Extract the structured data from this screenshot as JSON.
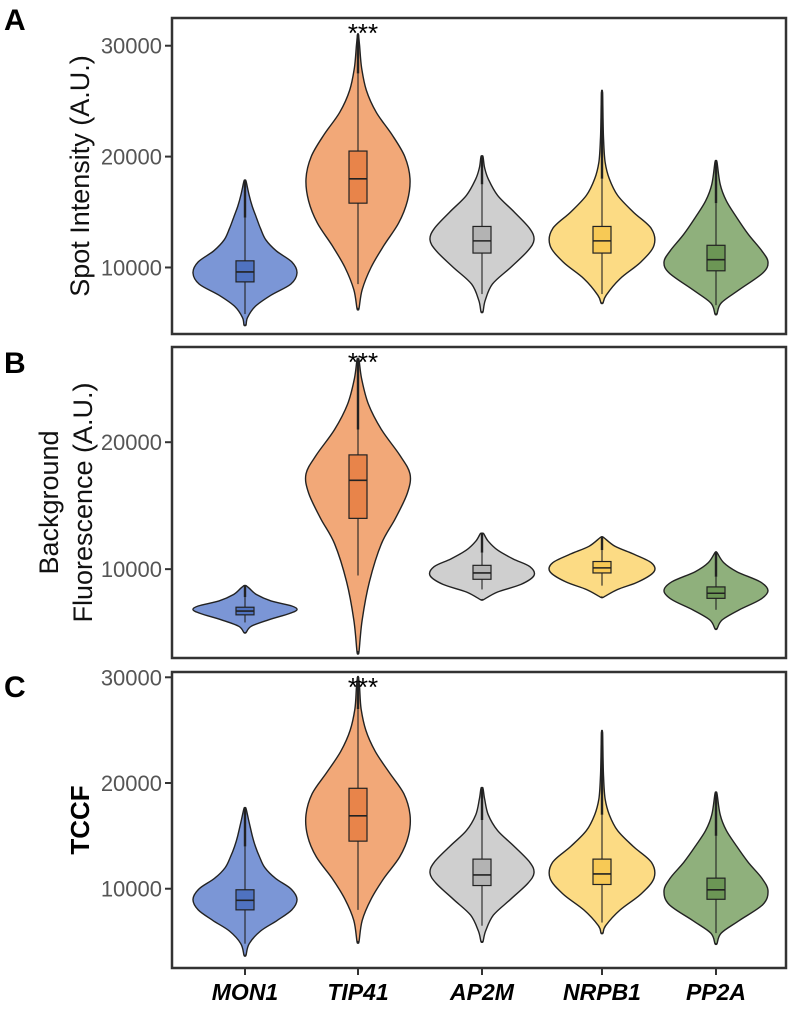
{
  "chart_data": {
    "type": "violin",
    "categories": [
      "MON1",
      "TIP41",
      "AP2M",
      "NRPB1",
      "PP2A"
    ],
    "colors": [
      "#7b96d6",
      "#f2a878",
      "#cfcfcf",
      "#fcdb84",
      "#8fb07c"
    ],
    "box_colors": [
      "#4f72c0",
      "#e8844a",
      "#b3b3b3",
      "#f7c955",
      "#6c9655"
    ],
    "panels": [
      {
        "label": "A",
        "ylabel_lines": [
          "Spot Intensity (A.U.)"
        ],
        "ylabel_bold": false,
        "ylim": [
          4000,
          32500
        ],
        "yticks": [
          10000,
          20000,
          30000
        ],
        "ytick_labels": [
          "10000",
          "20000",
          "30000"
        ],
        "annotation": {
          "category": "TIP41",
          "text": "***"
        },
        "series": [
          {
            "name": "MON1",
            "min": 4800,
            "max": 17800,
            "q1": 8700,
            "median": 9600,
            "q3": 10600,
            "whisker_low": 5800,
            "whisker_high": 14500,
            "density": [
              [
                4800,
                0.02
              ],
              [
                5500,
                0.05
              ],
              [
                6500,
                0.2
              ],
              [
                7500,
                0.5
              ],
              [
                8500,
                0.88
              ],
              [
                9500,
                1.0
              ],
              [
                10500,
                0.9
              ],
              [
                11500,
                0.6
              ],
              [
                12500,
                0.4
              ],
              [
                13500,
                0.3
              ],
              [
                14500,
                0.22
              ],
              [
                15500,
                0.14
              ],
              [
                16500,
                0.08
              ],
              [
                17800,
                0.02
              ]
            ]
          },
          {
            "name": "TIP41",
            "min": 6300,
            "max": 31000,
            "q1": 15800,
            "median": 18000,
            "q3": 20500,
            "whisker_low": 8500,
            "whisker_high": 27500,
            "density": [
              [
                6300,
                0.02
              ],
              [
                8000,
                0.08
              ],
              [
                10000,
                0.25
              ],
              [
                12000,
                0.5
              ],
              [
                14000,
                0.78
              ],
              [
                16000,
                0.95
              ],
              [
                18000,
                1.0
              ],
              [
                20000,
                0.9
              ],
              [
                22000,
                0.65
              ],
              [
                24000,
                0.35
              ],
              [
                26000,
                0.16
              ],
              [
                28000,
                0.07
              ],
              [
                30000,
                0.03
              ],
              [
                31000,
                0.01
              ]
            ]
          },
          {
            "name": "AP2M",
            "min": 6000,
            "max": 20000,
            "q1": 11300,
            "median": 12400,
            "q3": 13700,
            "whisker_low": 7600,
            "whisker_high": 17500,
            "density": [
              [
                6000,
                0.02
              ],
              [
                7000,
                0.06
              ],
              [
                8500,
                0.2
              ],
              [
                10000,
                0.55
              ],
              [
                11500,
                0.88
              ],
              [
                12500,
                1.0
              ],
              [
                13500,
                0.92
              ],
              [
                15000,
                0.62
              ],
              [
                16500,
                0.3
              ],
              [
                18000,
                0.12
              ],
              [
                19000,
                0.05
              ],
              [
                20000,
                0.02
              ]
            ]
          },
          {
            "name": "NRPB1",
            "min": 6800,
            "max": 25800,
            "q1": 11300,
            "median": 12400,
            "q3": 13700,
            "whisker_low": 7600,
            "whisker_high": 18000,
            "density": [
              [
                6800,
                0.02
              ],
              [
                7500,
                0.08
              ],
              [
                9000,
                0.35
              ],
              [
                10500,
                0.75
              ],
              [
                12000,
                1.0
              ],
              [
                13500,
                0.95
              ],
              [
                15000,
                0.6
              ],
              [
                16500,
                0.3
              ],
              [
                18000,
                0.14
              ],
              [
                19500,
                0.06
              ],
              [
                21500,
                0.03
              ],
              [
                23500,
                0.02
              ],
              [
                25800,
                0.01
              ]
            ]
          },
          {
            "name": "PP2A",
            "min": 5800,
            "max": 19500,
            "q1": 9700,
            "median": 10700,
            "q3": 12000,
            "whisker_low": 6600,
            "whisker_high": 15800,
            "density": [
              [
                5800,
                0.02
              ],
              [
                6800,
                0.1
              ],
              [
                8000,
                0.45
              ],
              [
                9500,
                0.9
              ],
              [
                10500,
                1.0
              ],
              [
                11500,
                0.88
              ],
              [
                13000,
                0.62
              ],
              [
                14500,
                0.4
              ],
              [
                16000,
                0.2
              ],
              [
                17500,
                0.08
              ],
              [
                19500,
                0.02
              ]
            ]
          }
        ]
      },
      {
        "label": "B",
        "ylabel_lines": [
          "Background",
          "Fluorescence (A.U.)"
        ],
        "ylabel_bold": false,
        "ylim": [
          3000,
          27500
        ],
        "yticks": [
          10000,
          20000
        ],
        "ytick_labels": [
          "10000",
          "20000"
        ],
        "annotation": {
          "category": "TIP41",
          "text": "***"
        },
        "series": [
          {
            "name": "MON1",
            "min": 5000,
            "max": 8700,
            "q1": 6400,
            "median": 6700,
            "q3": 7000,
            "whisker_low": 5800,
            "whisker_high": 7800,
            "density": [
              [
                5000,
                0.02
              ],
              [
                5500,
                0.12
              ],
              [
                6000,
                0.45
              ],
              [
                6500,
                0.85
              ],
              [
                6800,
                1.0
              ],
              [
                7100,
                0.9
              ],
              [
                7500,
                0.5
              ],
              [
                8000,
                0.22
              ],
              [
                8500,
                0.08
              ],
              [
                8700,
                0.02
              ]
            ]
          },
          {
            "name": "TIP41",
            "min": 3500,
            "max": 26500,
            "q1": 14000,
            "median": 17000,
            "q3": 19000,
            "whisker_low": 9500,
            "whisker_high": 21000,
            "density": [
              [
                3500,
                0.02
              ],
              [
                6000,
                0.08
              ],
              [
                9000,
                0.22
              ],
              [
                12000,
                0.45
              ],
              [
                14000,
                0.72
              ],
              [
                16000,
                0.95
              ],
              [
                17500,
                1.0
              ],
              [
                19000,
                0.8
              ],
              [
                21000,
                0.45
              ],
              [
                23000,
                0.2
              ],
              [
                25000,
                0.07
              ],
              [
                26500,
                0.02
              ]
            ]
          },
          {
            "name": "AP2M",
            "min": 7600,
            "max": 12800,
            "q1": 9200,
            "median": 9700,
            "q3": 10300,
            "whisker_low": 8400,
            "whisker_high": 11300,
            "density": [
              [
                7600,
                0.03
              ],
              [
                8200,
                0.3
              ],
              [
                8800,
                0.75
              ],
              [
                9500,
                1.0
              ],
              [
                10200,
                0.92
              ],
              [
                10800,
                0.6
              ],
              [
                11500,
                0.3
              ],
              [
                12200,
                0.12
              ],
              [
                12800,
                0.03
              ]
            ]
          },
          {
            "name": "NRPB1",
            "min": 7800,
            "max": 12500,
            "q1": 9700,
            "median": 10100,
            "q3": 10600,
            "whisker_low": 8700,
            "whisker_high": 11500,
            "density": [
              [
                7800,
                0.03
              ],
              [
                8400,
                0.3
              ],
              [
                9000,
                0.7
              ],
              [
                9800,
                1.0
              ],
              [
                10500,
                0.95
              ],
              [
                11200,
                0.6
              ],
              [
                11800,
                0.25
              ],
              [
                12500,
                0.03
              ]
            ]
          },
          {
            "name": "PP2A",
            "min": 5300,
            "max": 11300,
            "q1": 7700,
            "median": 8100,
            "q3": 8600,
            "whisker_low": 6800,
            "whisker_high": 9400,
            "density": [
              [
                5300,
                0.02
              ],
              [
                6000,
                0.12
              ],
              [
                6800,
                0.45
              ],
              [
                7600,
                0.85
              ],
              [
                8300,
                1.0
              ],
              [
                9000,
                0.85
              ],
              [
                9800,
                0.4
              ],
              [
                10500,
                0.15
              ],
              [
                11300,
                0.02
              ]
            ]
          }
        ]
      },
      {
        "label": "C",
        "ylabel_lines": [
          "TCCF"
        ],
        "ylabel_bold": true,
        "ylim": [
          2500,
          30500
        ],
        "yticks": [
          10000,
          20000,
          30000
        ],
        "ytick_labels": [
          "10000",
          "20000",
          "30000"
        ],
        "annotation": {
          "category": "TIP41",
          "text": "***"
        },
        "series": [
          {
            "name": "MON1",
            "min": 3700,
            "max": 17600,
            "q1": 8000,
            "median": 8900,
            "q3": 9900,
            "whisker_low": 4800,
            "whisker_high": 14000,
            "density": [
              [
                3700,
                0.02
              ],
              [
                4800,
                0.08
              ],
              [
                6000,
                0.3
              ],
              [
                7000,
                0.62
              ],
              [
                8000,
                0.9
              ],
              [
                9000,
                1.0
              ],
              [
                10000,
                0.88
              ],
              [
                11000,
                0.58
              ],
              [
                12000,
                0.38
              ],
              [
                13000,
                0.28
              ],
              [
                14000,
                0.2
              ],
              [
                15000,
                0.14
              ],
              [
                16500,
                0.07
              ],
              [
                17600,
                0.02
              ]
            ]
          },
          {
            "name": "TIP41",
            "min": 5000,
            "max": 30000,
            "q1": 14500,
            "median": 16900,
            "q3": 19500,
            "whisker_low": 8000,
            "whisker_high": 27000,
            "density": [
              [
                5000,
                0.02
              ],
              [
                7000,
                0.08
              ],
              [
                9000,
                0.25
              ],
              [
                11000,
                0.5
              ],
              [
                13000,
                0.8
              ],
              [
                15000,
                0.97
              ],
              [
                17000,
                1.0
              ],
              [
                19000,
                0.88
              ],
              [
                21000,
                0.6
              ],
              [
                23000,
                0.33
              ],
              [
                25000,
                0.15
              ],
              [
                27000,
                0.06
              ],
              [
                29000,
                0.03
              ],
              [
                30000,
                0.01
              ]
            ]
          },
          {
            "name": "AP2M",
            "min": 5000,
            "max": 19500,
            "q1": 10300,
            "median": 11300,
            "q3": 12800,
            "whisker_low": 6500,
            "whisker_high": 16500,
            "density": [
              [
                5000,
                0.02
              ],
              [
                6000,
                0.07
              ],
              [
                7500,
                0.22
              ],
              [
                9000,
                0.55
              ],
              [
                10500,
                0.88
              ],
              [
                11500,
                1.0
              ],
              [
                12500,
                0.92
              ],
              [
                14000,
                0.62
              ],
              [
                15500,
                0.3
              ],
              [
                17000,
                0.12
              ],
              [
                18500,
                0.05
              ],
              [
                19500,
                0.02
              ]
            ]
          },
          {
            "name": "NRPB1",
            "min": 5800,
            "max": 24800,
            "q1": 10400,
            "median": 11400,
            "q3": 12800,
            "whisker_low": 6800,
            "whisker_high": 17000,
            "density": [
              [
                5800,
                0.02
              ],
              [
                6500,
                0.07
              ],
              [
                8000,
                0.35
              ],
              [
                9500,
                0.75
              ],
              [
                11000,
                1.0
              ],
              [
                12500,
                0.95
              ],
              [
                14000,
                0.6
              ],
              [
                15500,
                0.3
              ],
              [
                17000,
                0.14
              ],
              [
                18500,
                0.06
              ],
              [
                20500,
                0.03
              ],
              [
                22500,
                0.02
              ],
              [
                24800,
                0.01
              ]
            ]
          },
          {
            "name": "PP2A",
            "min": 4800,
            "max": 19000,
            "q1": 9000,
            "median": 9900,
            "q3": 11000,
            "whisker_low": 5800,
            "whisker_high": 15000,
            "density": [
              [
                4800,
                0.02
              ],
              [
                5800,
                0.1
              ],
              [
                7000,
                0.45
              ],
              [
                8500,
                0.9
              ],
              [
                9800,
                1.0
              ],
              [
                11000,
                0.88
              ],
              [
                12500,
                0.62
              ],
              [
                14000,
                0.4
              ],
              [
                15500,
                0.2
              ],
              [
                17000,
                0.08
              ],
              [
                19000,
                0.02
              ]
            ]
          }
        ]
      }
    ]
  }
}
